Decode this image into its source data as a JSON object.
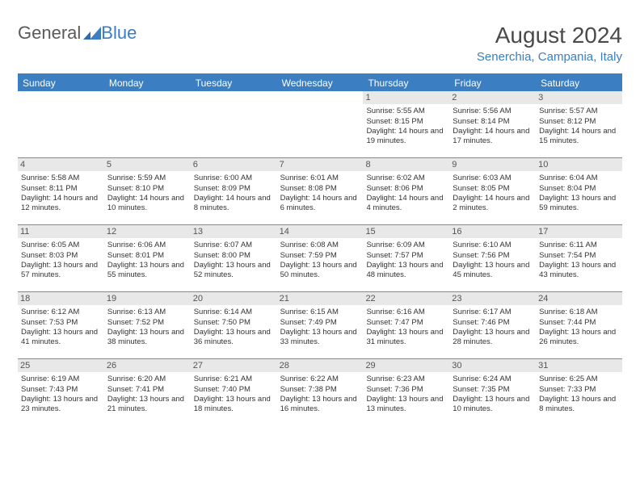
{
  "logo": {
    "text1": "General",
    "text2": "Blue"
  },
  "title": "August 2024",
  "location": "Senerchia, Campania, Italy",
  "colors": {
    "headerBar": "#3b7ec2",
    "dayHeaderBg": "#e8e8e8",
    "border": "#888888",
    "text": "#333333",
    "titleText": "#4a4a4a"
  },
  "weekdays": [
    "Sunday",
    "Monday",
    "Tuesday",
    "Wednesday",
    "Thursday",
    "Friday",
    "Saturday"
  ],
  "weeks": [
    [
      {
        "n": "",
        "empty": true
      },
      {
        "n": "",
        "empty": true
      },
      {
        "n": "",
        "empty": true
      },
      {
        "n": "",
        "empty": true
      },
      {
        "n": "1",
        "sr": "Sunrise: 5:55 AM",
        "ss": "Sunset: 8:15 PM",
        "dl": "Daylight: 14 hours and 19 minutes."
      },
      {
        "n": "2",
        "sr": "Sunrise: 5:56 AM",
        "ss": "Sunset: 8:14 PM",
        "dl": "Daylight: 14 hours and 17 minutes."
      },
      {
        "n": "3",
        "sr": "Sunrise: 5:57 AM",
        "ss": "Sunset: 8:12 PM",
        "dl": "Daylight: 14 hours and 15 minutes."
      }
    ],
    [
      {
        "n": "4",
        "sr": "Sunrise: 5:58 AM",
        "ss": "Sunset: 8:11 PM",
        "dl": "Daylight: 14 hours and 12 minutes."
      },
      {
        "n": "5",
        "sr": "Sunrise: 5:59 AM",
        "ss": "Sunset: 8:10 PM",
        "dl": "Daylight: 14 hours and 10 minutes."
      },
      {
        "n": "6",
        "sr": "Sunrise: 6:00 AM",
        "ss": "Sunset: 8:09 PM",
        "dl": "Daylight: 14 hours and 8 minutes."
      },
      {
        "n": "7",
        "sr": "Sunrise: 6:01 AM",
        "ss": "Sunset: 8:08 PM",
        "dl": "Daylight: 14 hours and 6 minutes."
      },
      {
        "n": "8",
        "sr": "Sunrise: 6:02 AM",
        "ss": "Sunset: 8:06 PM",
        "dl": "Daylight: 14 hours and 4 minutes."
      },
      {
        "n": "9",
        "sr": "Sunrise: 6:03 AM",
        "ss": "Sunset: 8:05 PM",
        "dl": "Daylight: 14 hours and 2 minutes."
      },
      {
        "n": "10",
        "sr": "Sunrise: 6:04 AM",
        "ss": "Sunset: 8:04 PM",
        "dl": "Daylight: 13 hours and 59 minutes."
      }
    ],
    [
      {
        "n": "11",
        "sr": "Sunrise: 6:05 AM",
        "ss": "Sunset: 8:03 PM",
        "dl": "Daylight: 13 hours and 57 minutes."
      },
      {
        "n": "12",
        "sr": "Sunrise: 6:06 AM",
        "ss": "Sunset: 8:01 PM",
        "dl": "Daylight: 13 hours and 55 minutes."
      },
      {
        "n": "13",
        "sr": "Sunrise: 6:07 AM",
        "ss": "Sunset: 8:00 PM",
        "dl": "Daylight: 13 hours and 52 minutes."
      },
      {
        "n": "14",
        "sr": "Sunrise: 6:08 AM",
        "ss": "Sunset: 7:59 PM",
        "dl": "Daylight: 13 hours and 50 minutes."
      },
      {
        "n": "15",
        "sr": "Sunrise: 6:09 AM",
        "ss": "Sunset: 7:57 PM",
        "dl": "Daylight: 13 hours and 48 minutes."
      },
      {
        "n": "16",
        "sr": "Sunrise: 6:10 AM",
        "ss": "Sunset: 7:56 PM",
        "dl": "Daylight: 13 hours and 45 minutes."
      },
      {
        "n": "17",
        "sr": "Sunrise: 6:11 AM",
        "ss": "Sunset: 7:54 PM",
        "dl": "Daylight: 13 hours and 43 minutes."
      }
    ],
    [
      {
        "n": "18",
        "sr": "Sunrise: 6:12 AM",
        "ss": "Sunset: 7:53 PM",
        "dl": "Daylight: 13 hours and 41 minutes."
      },
      {
        "n": "19",
        "sr": "Sunrise: 6:13 AM",
        "ss": "Sunset: 7:52 PM",
        "dl": "Daylight: 13 hours and 38 minutes."
      },
      {
        "n": "20",
        "sr": "Sunrise: 6:14 AM",
        "ss": "Sunset: 7:50 PM",
        "dl": "Daylight: 13 hours and 36 minutes."
      },
      {
        "n": "21",
        "sr": "Sunrise: 6:15 AM",
        "ss": "Sunset: 7:49 PM",
        "dl": "Daylight: 13 hours and 33 minutes."
      },
      {
        "n": "22",
        "sr": "Sunrise: 6:16 AM",
        "ss": "Sunset: 7:47 PM",
        "dl": "Daylight: 13 hours and 31 minutes."
      },
      {
        "n": "23",
        "sr": "Sunrise: 6:17 AM",
        "ss": "Sunset: 7:46 PM",
        "dl": "Daylight: 13 hours and 28 minutes."
      },
      {
        "n": "24",
        "sr": "Sunrise: 6:18 AM",
        "ss": "Sunset: 7:44 PM",
        "dl": "Daylight: 13 hours and 26 minutes."
      }
    ],
    [
      {
        "n": "25",
        "sr": "Sunrise: 6:19 AM",
        "ss": "Sunset: 7:43 PM",
        "dl": "Daylight: 13 hours and 23 minutes."
      },
      {
        "n": "26",
        "sr": "Sunrise: 6:20 AM",
        "ss": "Sunset: 7:41 PM",
        "dl": "Daylight: 13 hours and 21 minutes."
      },
      {
        "n": "27",
        "sr": "Sunrise: 6:21 AM",
        "ss": "Sunset: 7:40 PM",
        "dl": "Daylight: 13 hours and 18 minutes."
      },
      {
        "n": "28",
        "sr": "Sunrise: 6:22 AM",
        "ss": "Sunset: 7:38 PM",
        "dl": "Daylight: 13 hours and 16 minutes."
      },
      {
        "n": "29",
        "sr": "Sunrise: 6:23 AM",
        "ss": "Sunset: 7:36 PM",
        "dl": "Daylight: 13 hours and 13 minutes."
      },
      {
        "n": "30",
        "sr": "Sunrise: 6:24 AM",
        "ss": "Sunset: 7:35 PM",
        "dl": "Daylight: 13 hours and 10 minutes."
      },
      {
        "n": "31",
        "sr": "Sunrise: 6:25 AM",
        "ss": "Sunset: 7:33 PM",
        "dl": "Daylight: 13 hours and 8 minutes."
      }
    ]
  ]
}
